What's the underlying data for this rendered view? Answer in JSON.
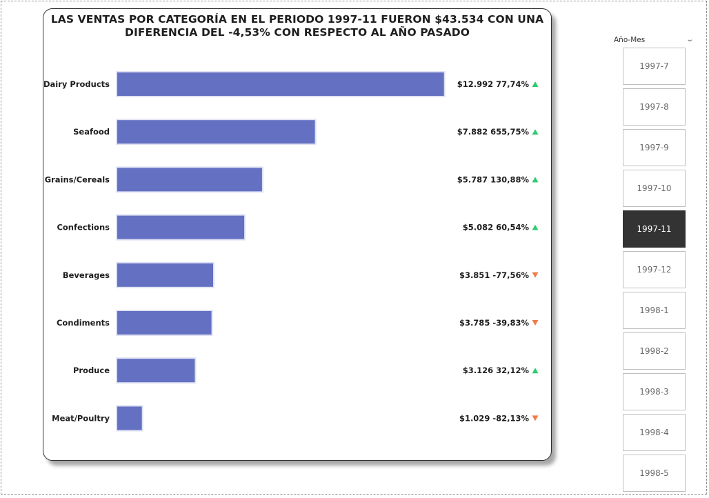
{
  "chart_data": {
    "type": "bar",
    "orientation": "horizontal",
    "title": "LAS VENTAS POR CATEGORÍA EN EL PERIODO 1997-11 FUERON $43.534 CON UNA DIFERENCIA DEL -4,53% CON RESPECTO AL AÑO PASADO",
    "categories": [
      "Dairy Products",
      "Seafood",
      "Grains/Cereals",
      "Confections",
      "Beverages",
      "Condiments",
      "Produce",
      "Meat/Poultry"
    ],
    "values": [
      12992,
      7882,
      5787,
      5082,
      3851,
      3785,
      3126,
      1029
    ],
    "data_labels": [
      "$12.992 77,74%",
      "$7.882 655,75%",
      "$5.787 130,88%",
      "$5.082 60,54%",
      "$3.851 -77,56%",
      "$3.785 -39,83%",
      "$3.126 32,12%",
      "$1.029 -82,13%"
    ],
    "trend": [
      "up",
      "up",
      "up",
      "up",
      "down",
      "down",
      "up",
      "down"
    ],
    "xlim": [
      0,
      13000
    ],
    "grid": false,
    "colors": {
      "bar": "#6470c2",
      "bar_outline": "#dfe2f4",
      "up": "#2ecc71",
      "down": "#f07c4a"
    }
  },
  "slicer": {
    "title": "Año-Mes",
    "selected": "1997-11",
    "items": [
      "1997-7",
      "1997-8",
      "1997-9",
      "1997-10",
      "1997-11",
      "1997-12",
      "1998-1",
      "1998-2",
      "1998-3",
      "1998-4",
      "1998-5"
    ]
  }
}
